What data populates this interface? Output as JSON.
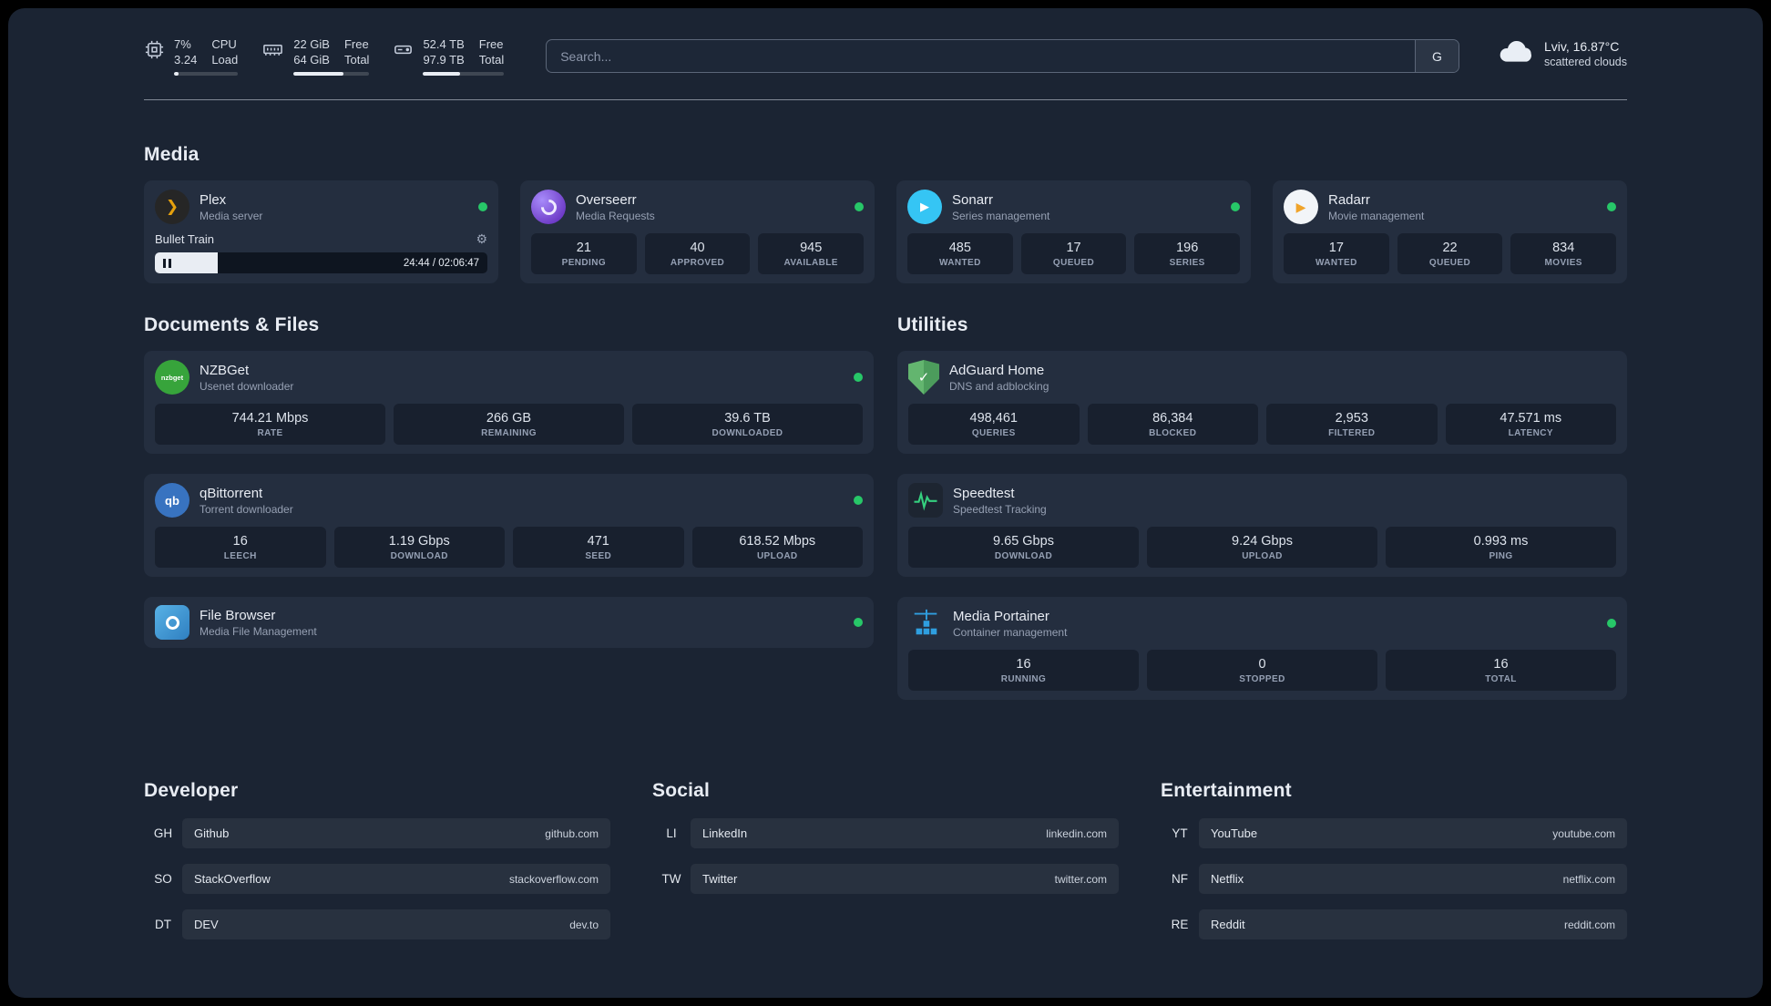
{
  "topbar": {
    "cpu": {
      "v1": "7%",
      "v2": "3.24",
      "l1": "CPU",
      "l2": "Load",
      "pct": 7
    },
    "ram": {
      "v1": "22 GiB",
      "v2": "64 GiB",
      "l1": "Free",
      "l2": "Total",
      "pct": 66
    },
    "disk": {
      "v1": "52.4 TB",
      "v2": "97.9 TB",
      "l1": "Free",
      "l2": "Total",
      "pct": 46
    },
    "search": {
      "placeholder": "Search...",
      "button_label": "G"
    },
    "weather": {
      "location": "Lviv, 16.87°C",
      "condition": "scattered clouds"
    }
  },
  "sections": {
    "media": {
      "title": "Media"
    },
    "documents": {
      "title": "Documents & Files"
    },
    "utilities": {
      "title": "Utilities"
    }
  },
  "services": {
    "plex": {
      "name": "Plex",
      "subtitle": "Media server",
      "player": {
        "title": "Bullet Train",
        "time": "24:44 / 02:06:47",
        "progress_pct": 19
      }
    },
    "overseerr": {
      "name": "Overseerr",
      "subtitle": "Media Requests",
      "stats": [
        {
          "value": "21",
          "label": "PENDING"
        },
        {
          "value": "40",
          "label": "APPROVED"
        },
        {
          "value": "945",
          "label": "AVAILABLE"
        }
      ]
    },
    "sonarr": {
      "name": "Sonarr",
      "subtitle": "Series management",
      "stats": [
        {
          "value": "485",
          "label": "WANTED"
        },
        {
          "value": "17",
          "label": "QUEUED"
        },
        {
          "value": "196",
          "label": "SERIES"
        }
      ]
    },
    "radarr": {
      "name": "Radarr",
      "subtitle": "Movie management",
      "stats": [
        {
          "value": "17",
          "label": "WANTED"
        },
        {
          "value": "22",
          "label": "QUEUED"
        },
        {
          "value": "834",
          "label": "MOVIES"
        }
      ]
    },
    "nzbget": {
      "name": "NZBGet",
      "subtitle": "Usenet downloader",
      "icon_text": "nzbget",
      "stats": [
        {
          "value": "744.21 Mbps",
          "label": "RATE"
        },
        {
          "value": "266 GB",
          "label": "REMAINING"
        },
        {
          "value": "39.6 TB",
          "label": "DOWNLOADED"
        }
      ]
    },
    "qbittorrent": {
      "name": "qBittorrent",
      "subtitle": "Torrent downloader",
      "icon_text": "qb",
      "stats": [
        {
          "value": "16",
          "label": "LEECH"
        },
        {
          "value": "1.19 Gbps",
          "label": "DOWNLOAD"
        },
        {
          "value": "471",
          "label": "SEED"
        },
        {
          "value": "618.52 Mbps",
          "label": "UPLOAD"
        }
      ]
    },
    "filebrowser": {
      "name": "File Browser",
      "subtitle": "Media File Management"
    },
    "adguard": {
      "name": "AdGuard Home",
      "subtitle": "DNS and adblocking",
      "stats": [
        {
          "value": "498,461",
          "label": "QUERIES"
        },
        {
          "value": "86,384",
          "label": "BLOCKED"
        },
        {
          "value": "2,953",
          "label": "FILTERED"
        },
        {
          "value": "47.571 ms",
          "label": "LATENCY"
        }
      ]
    },
    "speedtest": {
      "name": "Speedtest",
      "subtitle": "Speedtest Tracking",
      "stats": [
        {
          "value": "9.65 Gbps",
          "label": "DOWNLOAD"
        },
        {
          "value": "9.24 Gbps",
          "label": "UPLOAD"
        },
        {
          "value": "0.993 ms",
          "label": "PING"
        }
      ]
    },
    "portainer": {
      "name": "Media Portainer",
      "subtitle": "Container management",
      "stats": [
        {
          "value": "16",
          "label": "RUNNING"
        },
        {
          "value": "0",
          "label": "STOPPED"
        },
        {
          "value": "16",
          "label": "TOTAL"
        }
      ]
    }
  },
  "bookmarks": {
    "developer": {
      "title": "Developer",
      "items": [
        {
          "abbr": "GH",
          "name": "Github",
          "url": "github.com"
        },
        {
          "abbr": "SO",
          "name": "StackOverflow",
          "url": "stackoverflow.com"
        },
        {
          "abbr": "DT",
          "name": "DEV",
          "url": "dev.to"
        }
      ]
    },
    "social": {
      "title": "Social",
      "items": [
        {
          "abbr": "LI",
          "name": "LinkedIn",
          "url": "linkedin.com"
        },
        {
          "abbr": "TW",
          "name": "Twitter",
          "url": "twitter.com"
        }
      ]
    },
    "entertainment": {
      "title": "Entertainment",
      "items": [
        {
          "abbr": "YT",
          "name": "YouTube",
          "url": "youtube.com"
        },
        {
          "abbr": "NF",
          "name": "Netflix",
          "url": "netflix.com"
        },
        {
          "abbr": "RE",
          "name": "Reddit",
          "url": "reddit.com"
        }
      ]
    }
  }
}
